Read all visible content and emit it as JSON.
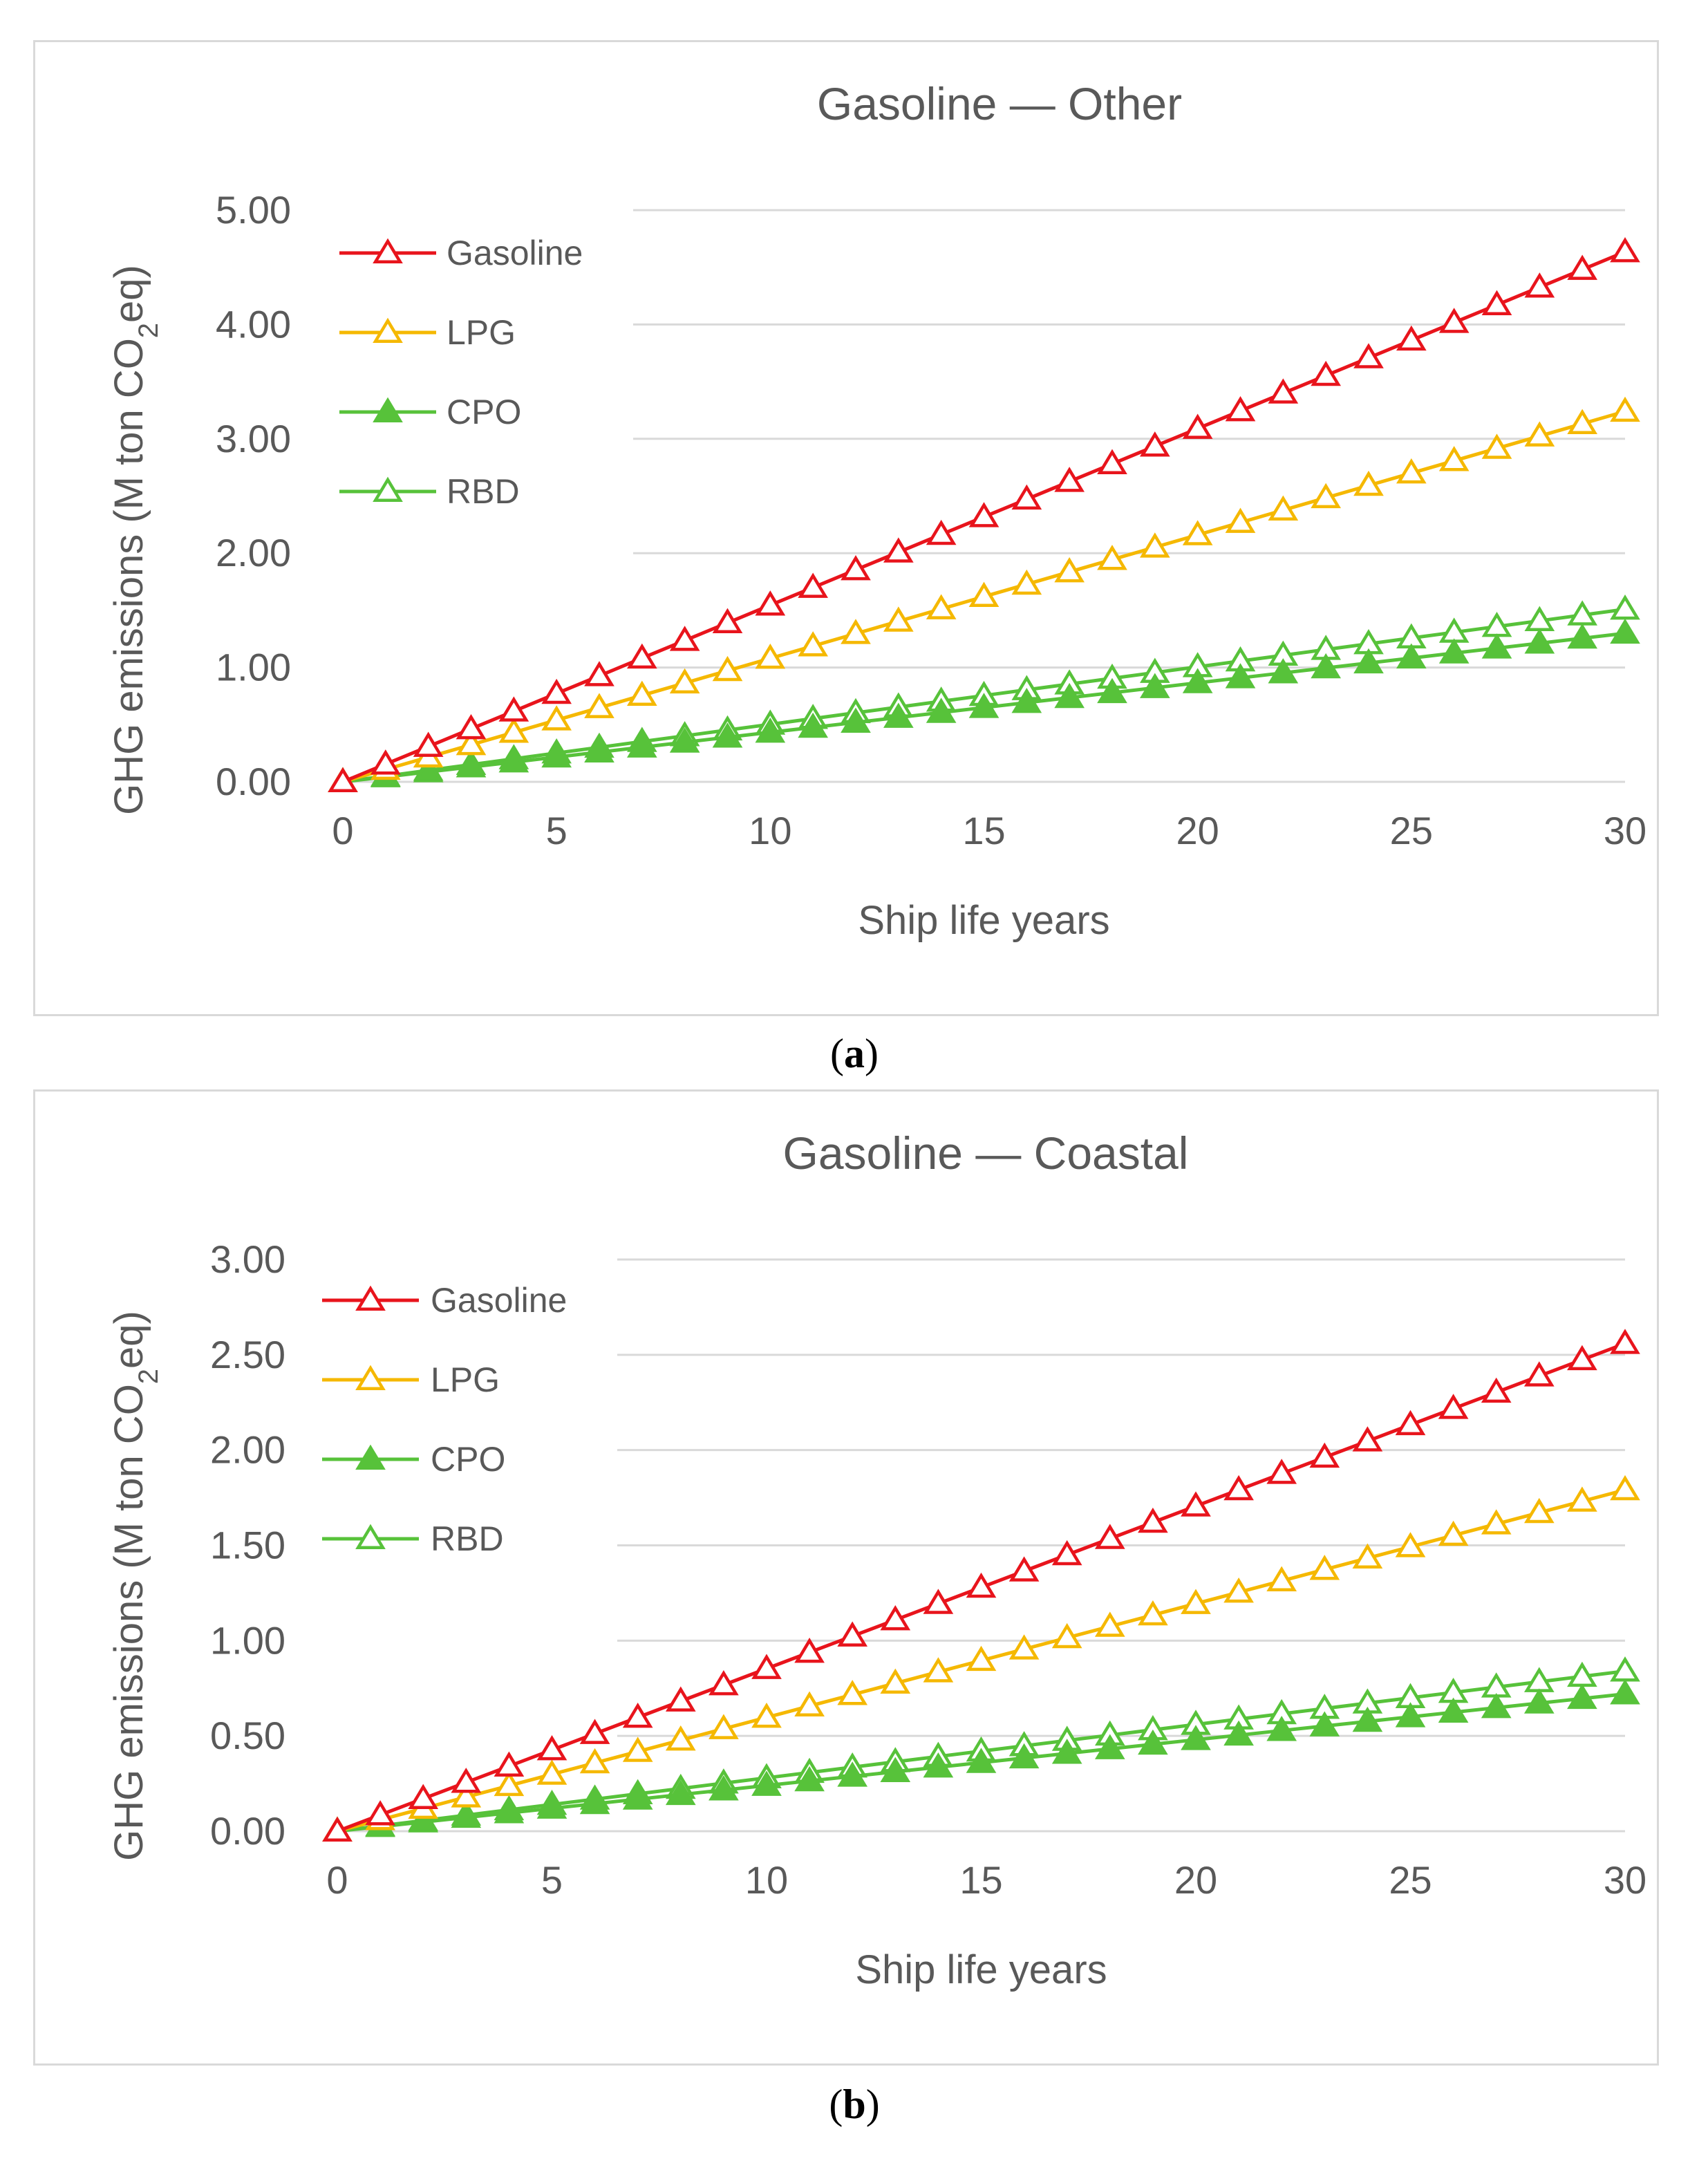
{
  "chart_data": [
    {
      "type": "line",
      "panel_label": "a",
      "title": "Gasoline — Other",
      "xlabel": "Ship life years",
      "ylabel_prefix": "GHG emissions (M ton CO",
      "ylabel_sub": "2",
      "ylabel_suffix": "eq)",
      "xlim": [
        0,
        30
      ],
      "ylim": [
        0,
        5
      ],
      "x_ticks": [
        0,
        5,
        10,
        15,
        20,
        25,
        30
      ],
      "y_ticks": [
        "0.00",
        "1.00",
        "2.00",
        "3.00",
        "4.00",
        "5.00"
      ],
      "grid": "horizontal",
      "legend_position": "top-left",
      "x": [
        0,
        1,
        2,
        3,
        4,
        5,
        6,
        7,
        8,
        9,
        10,
        11,
        12,
        13,
        14,
        15,
        16,
        17,
        18,
        19,
        20,
        21,
        22,
        23,
        24,
        25,
        26,
        27,
        28,
        29,
        30
      ],
      "series": [
        {
          "name": "Gasoline",
          "color": "#e8141c",
          "marker": "open-triangle",
          "slope": 0.1545
        },
        {
          "name": "LPG",
          "color": "#f5b800",
          "marker": "open-triangle",
          "slope": 0.108
        },
        {
          "name": "CPO",
          "color": "#57c23a",
          "marker": "filled-triangle",
          "slope": 0.0433
        },
        {
          "name": "RBD",
          "color": "#57c23a",
          "marker": "open-triangle",
          "slope": 0.0503
        }
      ]
    },
    {
      "type": "line",
      "panel_label": "b",
      "title": "Gasoline — Coastal",
      "xlabel": "Ship life years",
      "ylabel_prefix": "GHG emissions (M ton CO",
      "ylabel_sub": "2",
      "ylabel_suffix": "eq)",
      "xlim": [
        0,
        30
      ],
      "ylim": [
        0,
        3
      ],
      "x_ticks": [
        0,
        5,
        10,
        15,
        20,
        25,
        30
      ],
      "y_ticks": [
        "0.00",
        "0.50",
        "1.00",
        "1.50",
        "2.00",
        "2.50",
        "3.00"
      ],
      "grid": "horizontal",
      "legend_position": "top-left",
      "x": [
        0,
        1,
        2,
        3,
        4,
        5,
        6,
        7,
        8,
        9,
        10,
        11,
        12,
        13,
        14,
        15,
        16,
        17,
        18,
        19,
        20,
        21,
        22,
        23,
        24,
        25,
        26,
        27,
        28,
        29,
        30
      ],
      "series": [
        {
          "name": "Gasoline",
          "color": "#e8141c",
          "marker": "open-triangle",
          "slope": 0.0853
        },
        {
          "name": "LPG",
          "color": "#f5b800",
          "marker": "open-triangle",
          "slope": 0.0597
        },
        {
          "name": "CPO",
          "color": "#57c23a",
          "marker": "filled-triangle",
          "slope": 0.024
        },
        {
          "name": "RBD",
          "color": "#57c23a",
          "marker": "open-triangle",
          "slope": 0.028
        }
      ]
    }
  ]
}
